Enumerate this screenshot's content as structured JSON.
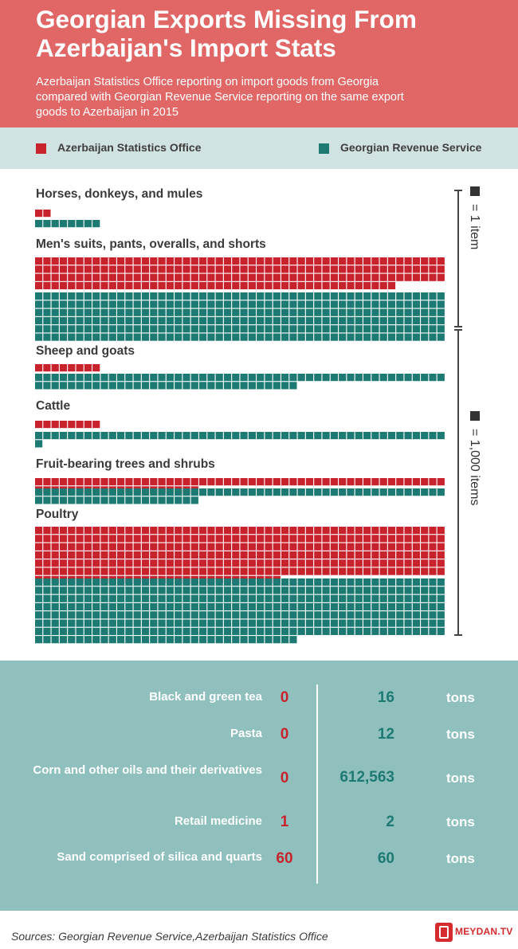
{
  "header": {
    "title": "Georgian Exports Missing From Azerbaijan's Import Stats",
    "subtitle": "Azerbaijan Statistics Office reporting on import goods from Georgia compared with Georgian Revenue Service reporting on the same export goods to Azerbaijan in 2015"
  },
  "legend": {
    "az_label": "Azerbaijan Statistics Office",
    "ge_label": "Georgian Revenue Service"
  },
  "colors": {
    "header_bg": "#e06766",
    "legend_bg": "#d0e3e2",
    "azerbaijan": "#c8232c",
    "georgia": "#1d7a73",
    "table_bg": "#8fc0be"
  },
  "scale": {
    "unit_small": "= 1 item",
    "unit_large": "= 1,000 items"
  },
  "chart_data": {
    "type": "waffle",
    "series": [
      {
        "name": "Azerbaijan Statistics Office"
      },
      {
        "name": "Georgian Revenue Service"
      }
    ],
    "categories": [
      {
        "label": "Horses, donkeys, and mules",
        "unit": "= 1 item",
        "az": 2,
        "ge": 8
      },
      {
        "label": "Men's suits, pants, overalls, and shorts",
        "unit": "= 1 item",
        "az": 194,
        "ge": 300
      },
      {
        "label": "Sheep and goats",
        "unit": "= 1,000 items",
        "az": 8,
        "ge": 82
      },
      {
        "label": "Cattle",
        "unit": "= 1,000 items",
        "az": 8,
        "ge": 51
      },
      {
        "label": "Fruit-bearing trees and shrubs",
        "unit": "= 1,000 items",
        "az": 70,
        "ge": 70
      },
      {
        "label": "Poultry",
        "unit": "= 1,000 items",
        "az": 330,
        "ge": 382
      }
    ]
  },
  "table": {
    "rows": [
      {
        "name": "Black and green tea",
        "az": "0",
        "ge": "16",
        "unit": "tons"
      },
      {
        "name": "Pasta",
        "az": "0",
        "ge": "12",
        "unit": "tons"
      },
      {
        "name": "Corn and other oils and their derivatives",
        "az": "0",
        "ge": "612,563",
        "unit": "tons"
      },
      {
        "name": "Retail medicine",
        "az": "1",
        "ge": "2",
        "unit": "tons"
      },
      {
        "name": "Sand comprised of silica and quarts",
        "az": "60",
        "ge": "60",
        "unit": "tons"
      }
    ]
  },
  "footer": {
    "sources": "Sources: Georgian Revenue Service,Azerbaijan Statistics Office",
    "logo_text": "MEYDAN.TV"
  }
}
